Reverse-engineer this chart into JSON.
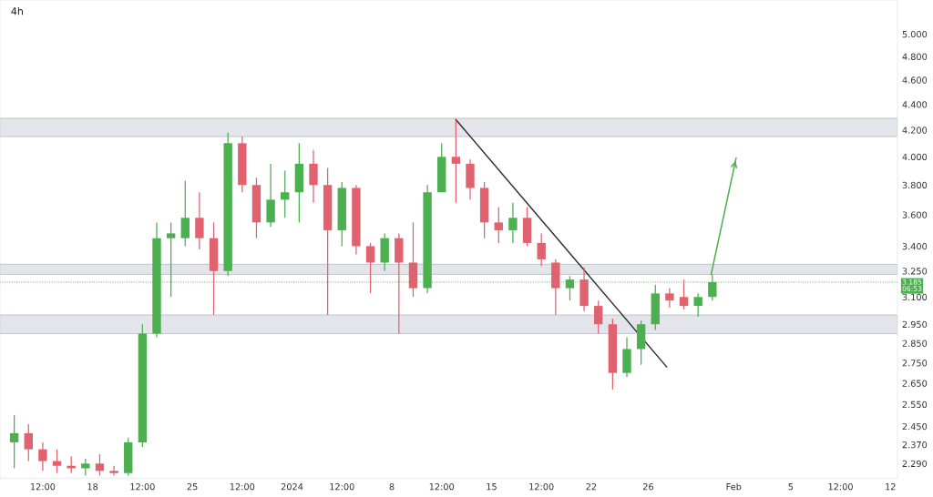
{
  "chart_data": {
    "type": "candlestick",
    "title": "4h",
    "xlim": [
      "2023-12-11T12:00",
      "2024-02-12T12:00"
    ],
    "xticks": [
      {
        "value": "2023-12-14T12:00",
        "label": "12:00"
      },
      {
        "value": "2023-12-18",
        "label": "18"
      },
      {
        "value": "2023-12-21T12:00",
        "label": "12:00"
      },
      {
        "value": "2023-12-25",
        "label": "25"
      },
      {
        "value": "2023-12-28T12:00",
        "label": "12:00"
      },
      {
        "value": "2024-01-01",
        "label": "2024"
      },
      {
        "value": "2024-01-04T12:00",
        "label": "12:00"
      },
      {
        "value": "2024-01-08",
        "label": "8"
      },
      {
        "value": "2024-01-11T12:00",
        "label": "12:00"
      },
      {
        "value": "2024-01-15",
        "label": "15"
      },
      {
        "value": "2024-01-18T12:00",
        "label": "12:00"
      },
      {
        "value": "2024-01-22",
        "label": "22"
      },
      {
        "value": "2024-01-26",
        "label": "26"
      },
      {
        "value": "2024-02-01",
        "label": "Feb"
      },
      {
        "value": "2024-02-05",
        "label": "5"
      },
      {
        "value": "2024-02-08T12:00",
        "label": "12:00"
      },
      {
        "value": "2024-02-12",
        "label": "12"
      }
    ],
    "log": true,
    "ylim": [
      2.23,
      5.32
    ],
    "yticks": [
      {
        "value": 5.0,
        "label": "5.000"
      },
      {
        "value": 4.8,
        "label": "4.800"
      },
      {
        "value": 4.6,
        "label": "4.600"
      },
      {
        "value": 4.4,
        "label": "4.400"
      },
      {
        "value": 4.2,
        "label": "4.200"
      },
      {
        "value": 4.0,
        "label": "4.000"
      },
      {
        "value": 3.8,
        "label": "3.800"
      },
      {
        "value": 3.6,
        "label": "3.600"
      },
      {
        "value": 3.4,
        "label": "3.400"
      },
      {
        "value": 3.25,
        "label": "3.250"
      },
      {
        "value": 3.1,
        "label": "3.100"
      },
      {
        "value": 2.95,
        "label": "2.950"
      },
      {
        "value": 2.85,
        "label": "2.850"
      },
      {
        "value": 2.75,
        "label": "2.750"
      },
      {
        "value": 2.65,
        "label": "2.650"
      },
      {
        "value": 2.55,
        "label": "2.550"
      },
      {
        "value": 2.45,
        "label": "2.450"
      },
      {
        "value": 2.37,
        "label": "2.370"
      },
      {
        "value": 2.29,
        "label": "2.290"
      }
    ],
    "grid": false,
    "bands": [
      {
        "axis": "y",
        "from": 4.15,
        "to": 4.29,
        "color": "#e4e5ea"
      },
      {
        "axis": "y",
        "from": 3.23,
        "to": 3.29,
        "color": "#e4e5ea"
      },
      {
        "axis": "y",
        "from": 2.9,
        "to": 3.0,
        "color": "#e4e5ea"
      }
    ],
    "ref_lines": [
      {
        "axis": "y",
        "value": 3.185,
        "label": "3.185\n06:53",
        "color": "#4caf50",
        "line_style": "dotted"
      }
    ],
    "series": [
      {
        "type": "candlestick",
        "x": [
          "2023-12-12T12:00",
          "2023-12-13T12:00",
          "2023-12-14T12:00",
          "2023-12-15T12:00",
          "2023-12-16T12:00",
          "2023-12-17T12:00",
          "2023-12-18T12:00",
          "2023-12-19T12:00",
          "2023-12-20T12:00",
          "2023-12-21T12:00",
          "2023-12-22T12:00",
          "2023-12-23T12:00",
          "2023-12-24T12:00",
          "2023-12-25T12:00",
          "2023-12-26T12:00",
          "2023-12-27T12:00",
          "2023-12-28T12:00",
          "2023-12-29T12:00",
          "2023-12-30T12:00",
          "2023-12-31T12:00",
          "2024-01-01T12:00",
          "2024-01-02T12:00",
          "2024-01-03T12:00",
          "2024-01-04T12:00",
          "2024-01-05T12:00",
          "2024-01-06T12:00",
          "2024-01-07T12:00",
          "2024-01-08T12:00",
          "2024-01-09T12:00",
          "2024-01-10T12:00",
          "2024-01-11T12:00",
          "2024-01-12T12:00",
          "2024-01-13T12:00",
          "2024-01-14T12:00",
          "2024-01-15T12:00",
          "2024-01-16T12:00",
          "2024-01-17T12:00",
          "2024-01-18T12:00",
          "2024-01-19T12:00",
          "2024-01-20T12:00",
          "2024-01-21T12:00",
          "2024-01-22T12:00",
          "2024-01-23T12:00",
          "2024-01-24T12:00",
          "2024-01-25T12:00",
          "2024-01-26T12:00",
          "2024-01-27T12:00",
          "2024-01-28T12:00",
          "2024-01-29T12:00",
          "2024-01-30T12:00"
        ],
        "ohlc": [
          [
            2.38,
            2.5,
            2.27,
            2.42
          ],
          [
            2.42,
            2.46,
            2.3,
            2.35
          ],
          [
            2.35,
            2.38,
            2.26,
            2.3
          ],
          [
            2.3,
            2.35,
            2.25,
            2.28
          ],
          [
            2.28,
            2.32,
            2.25,
            2.27
          ],
          [
            2.27,
            2.31,
            2.24,
            2.29
          ],
          [
            2.29,
            2.33,
            2.24,
            2.26
          ],
          [
            2.26,
            2.28,
            2.24,
            2.25
          ],
          [
            2.25,
            2.4,
            2.24,
            2.38
          ],
          [
            2.38,
            2.95,
            2.36,
            2.9
          ],
          [
            2.9,
            3.55,
            2.88,
            3.45
          ],
          [
            3.45,
            3.55,
            3.1,
            3.48
          ],
          [
            3.45,
            3.83,
            3.4,
            3.58
          ],
          [
            3.58,
            3.75,
            3.38,
            3.45
          ],
          [
            3.45,
            3.55,
            3.0,
            3.25
          ],
          [
            3.25,
            4.18,
            3.22,
            4.1
          ],
          [
            4.1,
            4.15,
            3.75,
            3.8
          ],
          [
            3.8,
            3.85,
            3.45,
            3.55
          ],
          [
            3.55,
            3.95,
            3.52,
            3.7
          ],
          [
            3.7,
            3.9,
            3.58,
            3.75
          ],
          [
            3.75,
            4.1,
            3.55,
            3.95
          ],
          [
            3.95,
            4.05,
            3.68,
            3.8
          ],
          [
            3.8,
            3.92,
            3.0,
            3.5
          ],
          [
            3.5,
            3.82,
            3.4,
            3.78
          ],
          [
            3.78,
            3.8,
            3.35,
            3.4
          ],
          [
            3.4,
            3.42,
            3.12,
            3.3
          ],
          [
            3.3,
            3.48,
            3.25,
            3.45
          ],
          [
            3.45,
            3.48,
            2.9,
            3.3
          ],
          [
            3.3,
            3.55,
            3.1,
            3.15
          ],
          [
            3.15,
            3.8,
            3.12,
            3.75
          ],
          [
            3.75,
            4.1,
            3.75,
            4.0
          ],
          [
            4.0,
            4.28,
            3.68,
            3.95
          ],
          [
            3.95,
            3.98,
            3.7,
            3.78
          ],
          [
            3.78,
            3.82,
            3.45,
            3.55
          ],
          [
            3.55,
            3.65,
            3.42,
            3.5
          ],
          [
            3.5,
            3.68,
            3.42,
            3.58
          ],
          [
            3.58,
            3.65,
            3.4,
            3.42
          ],
          [
            3.42,
            3.48,
            3.28,
            3.32
          ],
          [
            3.3,
            3.32,
            3.0,
            3.15
          ],
          [
            3.15,
            3.22,
            3.08,
            3.2
          ],
          [
            3.2,
            3.27,
            3.02,
            3.05
          ],
          [
            3.05,
            3.08,
            2.9,
            2.95
          ],
          [
            2.95,
            2.98,
            2.62,
            2.7
          ],
          [
            2.7,
            2.88,
            2.68,
            2.82
          ],
          [
            2.82,
            2.97,
            2.74,
            2.95
          ],
          [
            2.95,
            3.17,
            2.92,
            3.12
          ],
          [
            3.12,
            3.15,
            3.04,
            3.08
          ],
          [
            3.1,
            3.2,
            3.03,
            3.05
          ],
          [
            3.05,
            3.12,
            2.99,
            3.1
          ],
          [
            3.1,
            3.23,
            3.08,
            3.185
          ]
        ],
        "colors": [
          "#4caf50",
          "#e0626e",
          "#e0626e",
          "#e0626e",
          "#e0626e",
          "#4caf50",
          "#e0626e",
          "#e0626e",
          "#4caf50",
          "#4caf50",
          "#4caf50",
          "#4caf50",
          "#4caf50",
          "#e0626e",
          "#e0626e",
          "#4caf50",
          "#e0626e",
          "#e0626e",
          "#4caf50",
          "#4caf50",
          "#4caf50",
          "#e0626e",
          "#e0626e",
          "#4caf50",
          "#e0626e",
          "#e0626e",
          "#4caf50",
          "#e0626e",
          "#e0626e",
          "#4caf50",
          "#4caf50",
          "#e0626e",
          "#e0626e",
          "#e0626e",
          "#e0626e",
          "#4caf50",
          "#e0626e",
          "#e0626e",
          "#e0626e",
          "#4caf50",
          "#e0626e",
          "#e0626e",
          "#e0626e",
          "#4caf50",
          "#4caf50",
          "#4caf50",
          "#e0626e",
          "#e0626e",
          "#4caf50",
          "#4caf50"
        ]
      },
      {
        "type": "line",
        "color": "#333333",
        "x": [
          "2024-01-12T12:00",
          "2024-01-27T07:00"
        ],
        "values": [
          4.28,
          2.73
        ]
      },
      {
        "type": "line",
        "color": "#4caf50",
        "x": [
          "2024-01-30T10:00",
          "2024-02-01T04:00"
        ],
        "values": [
          3.23,
          3.99
        ]
      }
    ]
  }
}
